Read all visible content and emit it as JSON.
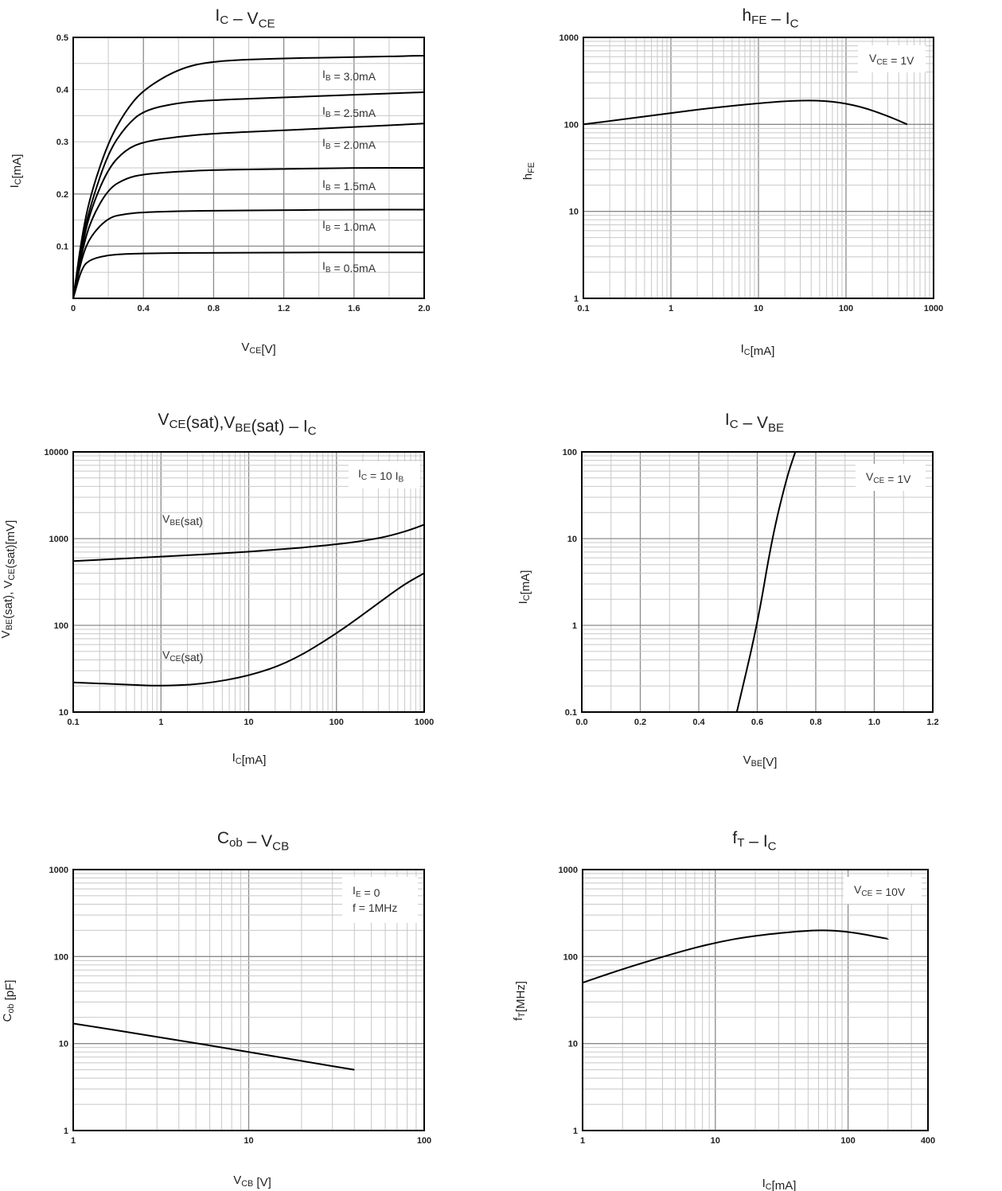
{
  "chart_data": [
    {
      "id": "ic_vce",
      "type": "line",
      "title": "IC – VCE",
      "xlabel": "VCE[V]",
      "ylabel": "IC[mA]",
      "x_scale": "linear",
      "y_scale": "linear",
      "xlim": [
        0,
        2.0
      ],
      "ylim": [
        0,
        0.5
      ],
      "xticks": [
        "0",
        "0.4",
        "0.8",
        "1.2",
        "1.6",
        "2.0"
      ],
      "yticks": [
        "0.1",
        "0.2",
        "0.3",
        "0.4",
        "0.5"
      ],
      "grid": true,
      "annotations": [
        "IB = 3.0mA",
        "IB = 2.5mA",
        "IB = 2.0mA",
        "IB = 1.5mA",
        "IB = 1.0mA",
        "IB = 0.5mA"
      ],
      "series": [
        {
          "name": "IB = 3.0mA",
          "x": [
            0,
            0.05,
            0.1,
            0.2,
            0.3,
            0.4,
            0.6,
            0.8,
            1.2,
            1.6,
            2.0
          ],
          "y": [
            0,
            0.12,
            0.2,
            0.3,
            0.36,
            0.4,
            0.44,
            0.455,
            0.46,
            0.462,
            0.465
          ]
        },
        {
          "name": "IB = 2.5mA",
          "x": [
            0,
            0.05,
            0.1,
            0.2,
            0.3,
            0.4,
            0.6,
            0.8,
            1.2,
            1.6,
            2.0
          ],
          "y": [
            0,
            0.11,
            0.18,
            0.28,
            0.33,
            0.36,
            0.375,
            0.38,
            0.385,
            0.39,
            0.395
          ]
        },
        {
          "name": "IB = 2.0mA",
          "x": [
            0,
            0.05,
            0.1,
            0.2,
            0.3,
            0.4,
            0.6,
            0.8,
            1.2,
            1.6,
            2.0
          ],
          "y": [
            0,
            0.1,
            0.17,
            0.25,
            0.285,
            0.3,
            0.31,
            0.316,
            0.322,
            0.328,
            0.335
          ]
        },
        {
          "name": "IB = 1.5mA",
          "x": [
            0,
            0.05,
            0.1,
            0.2,
            0.3,
            0.4,
            0.6,
            0.8,
            1.2,
            1.6,
            2.0
          ],
          "y": [
            0,
            0.09,
            0.15,
            0.21,
            0.23,
            0.238,
            0.243,
            0.246,
            0.248,
            0.25,
            0.25
          ]
        },
        {
          "name": "IB = 1.0mA",
          "x": [
            0,
            0.05,
            0.1,
            0.2,
            0.3,
            0.4,
            0.6,
            0.8,
            1.2,
            1.6,
            2.0
          ],
          "y": [
            0,
            0.08,
            0.12,
            0.155,
            0.162,
            0.165,
            0.167,
            0.168,
            0.169,
            0.17,
            0.17
          ]
        },
        {
          "name": "IB = 0.5mA",
          "x": [
            0,
            0.05,
            0.1,
            0.2,
            0.3,
            0.4,
            0.6,
            0.8,
            1.2,
            1.6,
            2.0
          ],
          "y": [
            0,
            0.06,
            0.075,
            0.083,
            0.085,
            0.086,
            0.087,
            0.087,
            0.088,
            0.088,
            0.088
          ]
        }
      ]
    },
    {
      "id": "hfe_ic",
      "type": "line",
      "title": "hFE – IC",
      "xlabel": "IC[mA]",
      "ylabel": "hFE",
      "x_scale": "log",
      "y_scale": "log",
      "xlim": [
        0.1,
        1000
      ],
      "ylim": [
        1,
        1000
      ],
      "xticks": [
        "0.1",
        "1",
        "10",
        "100",
        "1000"
      ],
      "yticks": [
        "1",
        "10",
        "100",
        "1000"
      ],
      "grid": true,
      "annotations": [
        "VCE = 1V"
      ],
      "series": [
        {
          "x": [
            0.1,
            0.3,
            1,
            3,
            10,
            30,
            70,
            150,
            300,
            500
          ],
          "y": [
            100,
            115,
            135,
            155,
            175,
            190,
            185,
            160,
            125,
            100
          ]
        }
      ]
    },
    {
      "id": "vsat_ic",
      "type": "line",
      "title": "VCE(sat),VBE(sat) – IC",
      "xlabel": "IC[mA]",
      "ylabel": "VBE(sat), VCE(sat)[mV]",
      "x_scale": "log",
      "y_scale": "log",
      "xlim": [
        0.1,
        1000
      ],
      "ylim": [
        10,
        10000
      ],
      "xticks": [
        "0.1",
        "1",
        "10",
        "100",
        "1000"
      ],
      "yticks": [
        "10",
        "100",
        "1000",
        "10000"
      ],
      "grid": true,
      "annotations": [
        "IC = 10 IB",
        "VBE(sat)",
        "VCE(sat)"
      ],
      "series": [
        {
          "name": "VBE(sat)",
          "x": [
            0.1,
            1,
            10,
            100,
            300,
            600,
            1000
          ],
          "y": [
            550,
            620,
            700,
            850,
            1000,
            1200,
            1450
          ]
        },
        {
          "name": "VCE(sat)",
          "x": [
            0.1,
            0.5,
            1,
            3,
            10,
            30,
            100,
            300,
            600,
            1000
          ],
          "y": [
            22,
            20.5,
            20,
            21,
            26,
            38,
            80,
            180,
            300,
            400
          ]
        }
      ]
    },
    {
      "id": "ic_vbe",
      "type": "line",
      "title": "IC – VBE",
      "xlabel": "VBE[V]",
      "ylabel": "IC[mA]",
      "x_scale": "linear",
      "y_scale": "log",
      "xlim": [
        0,
        1.2
      ],
      "ylim": [
        0.1,
        100
      ],
      "xticks": [
        "0.0",
        "0.2",
        "0.4",
        "0.6",
        "0.8",
        "1.0",
        "1.2"
      ],
      "yticks": [
        "0.1",
        "1",
        "10",
        "100"
      ],
      "grid": true,
      "annotations": [
        "VCE = 1V"
      ],
      "series": [
        {
          "x": [
            0.53,
            0.6,
            0.65,
            0.7,
            0.73
          ],
          "y": [
            0.1,
            1,
            10,
            50,
            100
          ]
        }
      ]
    },
    {
      "id": "cob_vcb",
      "type": "line",
      "title": "Cob – VCB",
      "xlabel": "VCB [V]",
      "ylabel": "Cob [pF]",
      "x_scale": "log",
      "y_scale": "log",
      "xlim": [
        1,
        100
      ],
      "ylim": [
        1,
        1000
      ],
      "xticks": [
        "1",
        "10",
        "100"
      ],
      "yticks": [
        "1",
        "10",
        "100",
        "1000"
      ],
      "grid": true,
      "annotations": [
        "IE = 0",
        "f = 1MHz"
      ],
      "series": [
        {
          "x": [
            1,
            3,
            10,
            20,
            40
          ],
          "y": [
            17,
            12,
            8,
            6.3,
            5
          ]
        }
      ]
    },
    {
      "id": "ft_ic",
      "type": "line",
      "title": "fT – IC",
      "xlabel": "IC[mA]",
      "ylabel": "fT[MHz]",
      "x_scale": "log",
      "y_scale": "log",
      "xlim": [
        1,
        400
      ],
      "ylim": [
        1,
        1000
      ],
      "xticks": [
        "1",
        "10",
        "100",
        "400"
      ],
      "yticks": [
        "1",
        "10",
        "100",
        "1000"
      ],
      "grid": true,
      "annotations": [
        "VCE = 10V"
      ],
      "series": [
        {
          "x": [
            1,
            2,
            5,
            10,
            20,
            50,
            80,
            120,
            200
          ],
          "y": [
            50,
            72,
            110,
            145,
            175,
            200,
            200,
            185,
            160
          ]
        }
      ]
    }
  ]
}
